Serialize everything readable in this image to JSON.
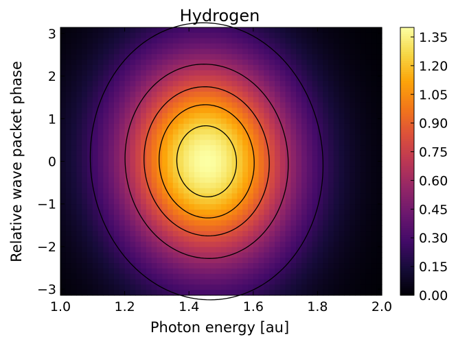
{
  "chart_data": {
    "type": "heatmap",
    "title": "Hydrogen",
    "xlabel": "Photon energy [au]",
    "ylabel": "Relative wave packet phase",
    "xlim": [
      1.0,
      2.0
    ],
    "ylim": [
      -3.14159,
      3.14159
    ],
    "x_ticks": [
      {
        "value": 1.0,
        "label": "1.0"
      },
      {
        "value": 1.2,
        "label": "1.2"
      },
      {
        "value": 1.4,
        "label": "1.4"
      },
      {
        "value": 1.6,
        "label": "1.6"
      },
      {
        "value": 1.8,
        "label": "1.8"
      },
      {
        "value": 2.0,
        "label": "2.0"
      }
    ],
    "y_ticks": [
      {
        "value": 3,
        "label": "3"
      },
      {
        "value": 2,
        "label": "2"
      },
      {
        "value": 1,
        "label": "1"
      },
      {
        "value": 0,
        "label": "0"
      },
      {
        "value": -1,
        "label": "−1"
      },
      {
        "value": -2,
        "label": "−2"
      },
      {
        "value": -3,
        "label": "−3"
      }
    ],
    "colormap": "inferno",
    "colorbar": {
      "range": [
        0.0,
        1.4
      ],
      "ticks": [
        {
          "value": 0.0,
          "label": "0.00"
        },
        {
          "value": 0.15,
          "label": "0.15"
        },
        {
          "value": 0.3,
          "label": "0.30"
        },
        {
          "value": 0.45,
          "label": "0.45"
        },
        {
          "value": 0.6,
          "label": "0.60"
        },
        {
          "value": 0.75,
          "label": "0.75"
        },
        {
          "value": 0.9,
          "label": "0.90"
        },
        {
          "value": 1.05,
          "label": "1.05"
        },
        {
          "value": 1.2,
          "label": "1.20"
        },
        {
          "value": 1.35,
          "label": "1.35"
        }
      ]
    },
    "surface": {
      "peak_value": 1.4,
      "peak_x": 1.455,
      "peak_y": 0.0,
      "sigma_x": 0.195,
      "sigma_y": 1.75,
      "tilt": 0.03
    },
    "contour_levels": [
      0.25,
      0.6,
      0.85,
      1.05,
      1.25
    ],
    "contour_color": "#000000"
  }
}
